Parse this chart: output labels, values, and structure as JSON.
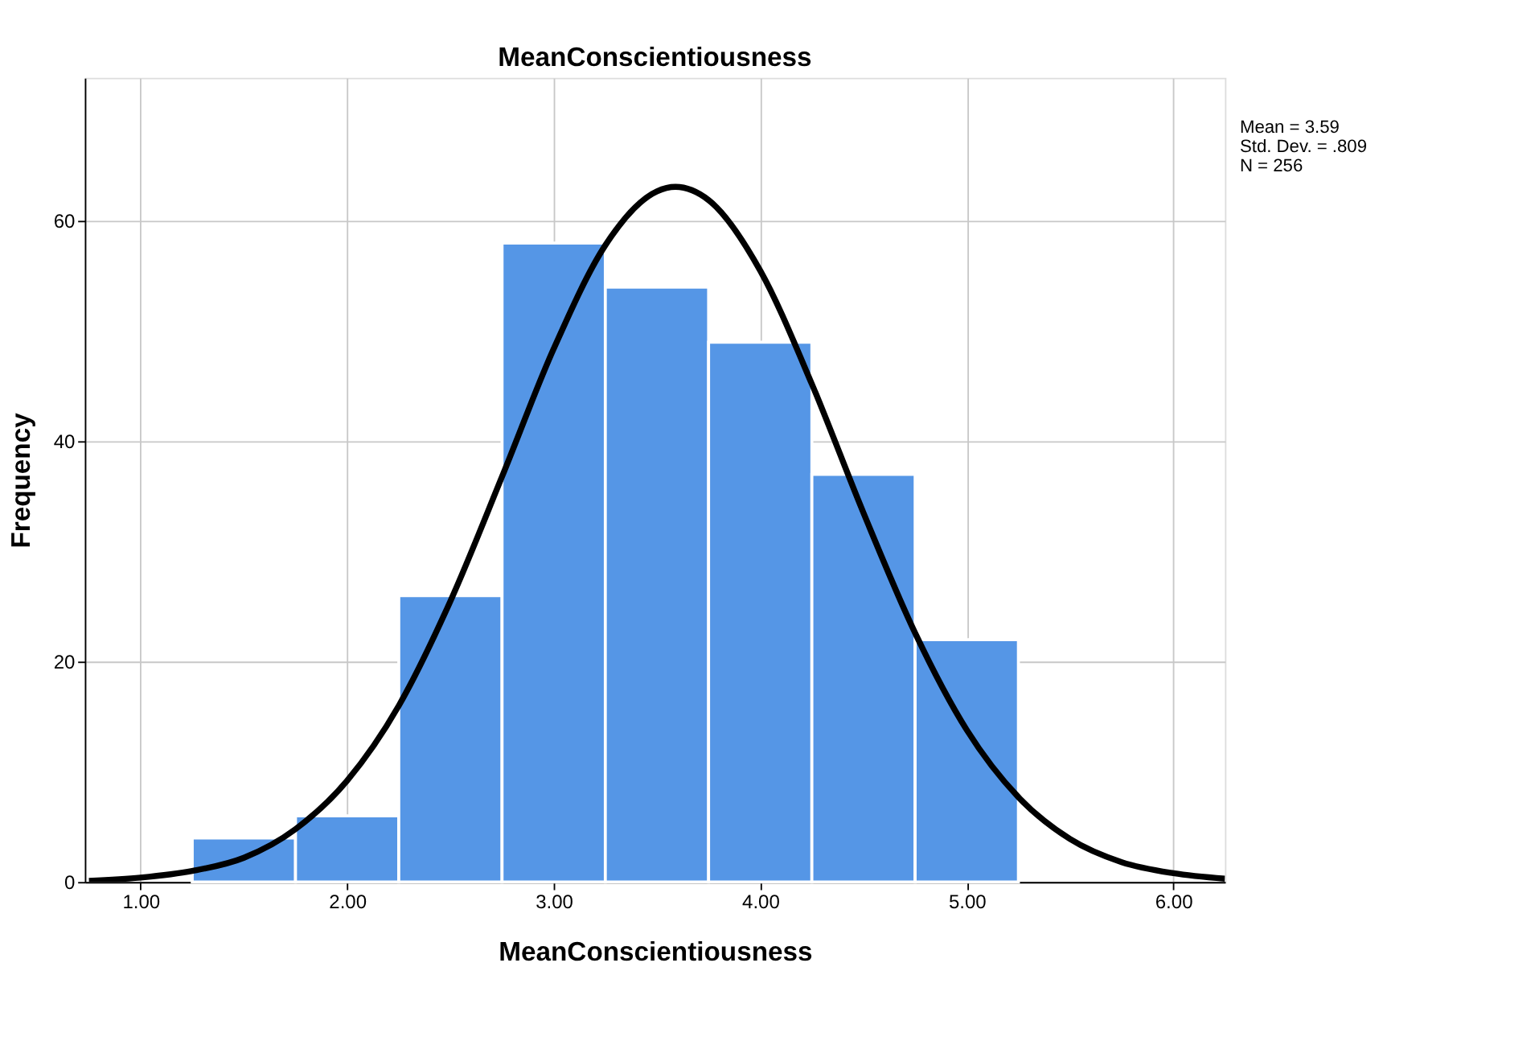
{
  "chart_data": {
    "type": "histogram",
    "title": "MeanConscientiousness",
    "xlabel": "MeanConscientiousness",
    "ylabel": "Frequency",
    "bins": [
      1.25,
      1.75,
      2.25,
      2.75,
      3.25,
      3.75,
      4.25,
      4.75,
      5.25
    ],
    "values": [
      4,
      6,
      26,
      58,
      54,
      49,
      37,
      22
    ],
    "color": "#5596e6",
    "series": [
      {
        "type": "line",
        "color": "#000000",
        "x": [
          0.75,
          1.0,
          1.25,
          1.5,
          1.75,
          2.0,
          2.25,
          2.5,
          2.75,
          3.0,
          3.25,
          3.5,
          3.59,
          3.75,
          4.0,
          4.25,
          4.5,
          4.75,
          5.0,
          5.25,
          5.5,
          5.75,
          6.0,
          6.25
        ],
        "values": [
          0.1,
          0.4,
          1,
          2.2,
          4.8,
          9.2,
          16,
          25.5,
          36.8,
          48.4,
          57.8,
          62.7,
          63.1,
          61.9,
          55.5,
          45.2,
          33.5,
          22.6,
          13.8,
          7.7,
          3.9,
          1.8,
          0.8,
          0.3
        ]
      }
    ],
    "xlim": [
      0.73,
      6.25
    ],
    "ylim": [
      0,
      73
    ],
    "xticks": [
      {
        "value": 1,
        "label": "1.00"
      },
      {
        "value": 2,
        "label": "2.00"
      },
      {
        "value": 3,
        "label": "3.00"
      },
      {
        "value": 4,
        "label": "4.00"
      },
      {
        "value": 5,
        "label": "5.00"
      },
      {
        "value": 6,
        "label": "6.00"
      }
    ],
    "yticks": [
      0,
      20,
      40,
      60
    ],
    "grid": true,
    "annotations": [
      "Mean = 3.59",
      "Std. Dev. = .809",
      "N = 256"
    ]
  }
}
